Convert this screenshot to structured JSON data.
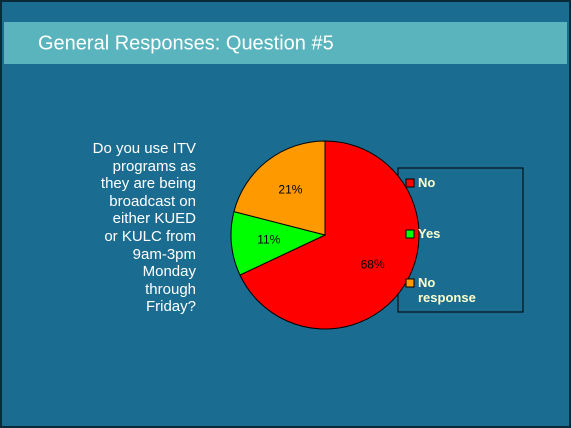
{
  "chart_data": {
    "type": "pie",
    "title": "General Responses: Question #5",
    "question": [
      "Do you use ITV",
      "programs as",
      "they are being",
      "broadcast on",
      "either KUED",
      "or KULC from",
      "9am-3pm",
      "Monday",
      "through",
      "Friday?"
    ],
    "categories": [
      "No",
      "Yes",
      "No response"
    ],
    "values": [
      68,
      11,
      21
    ],
    "colors": [
      "#ff0000",
      "#00ff00",
      "#ff9900"
    ],
    "legend": "right"
  }
}
